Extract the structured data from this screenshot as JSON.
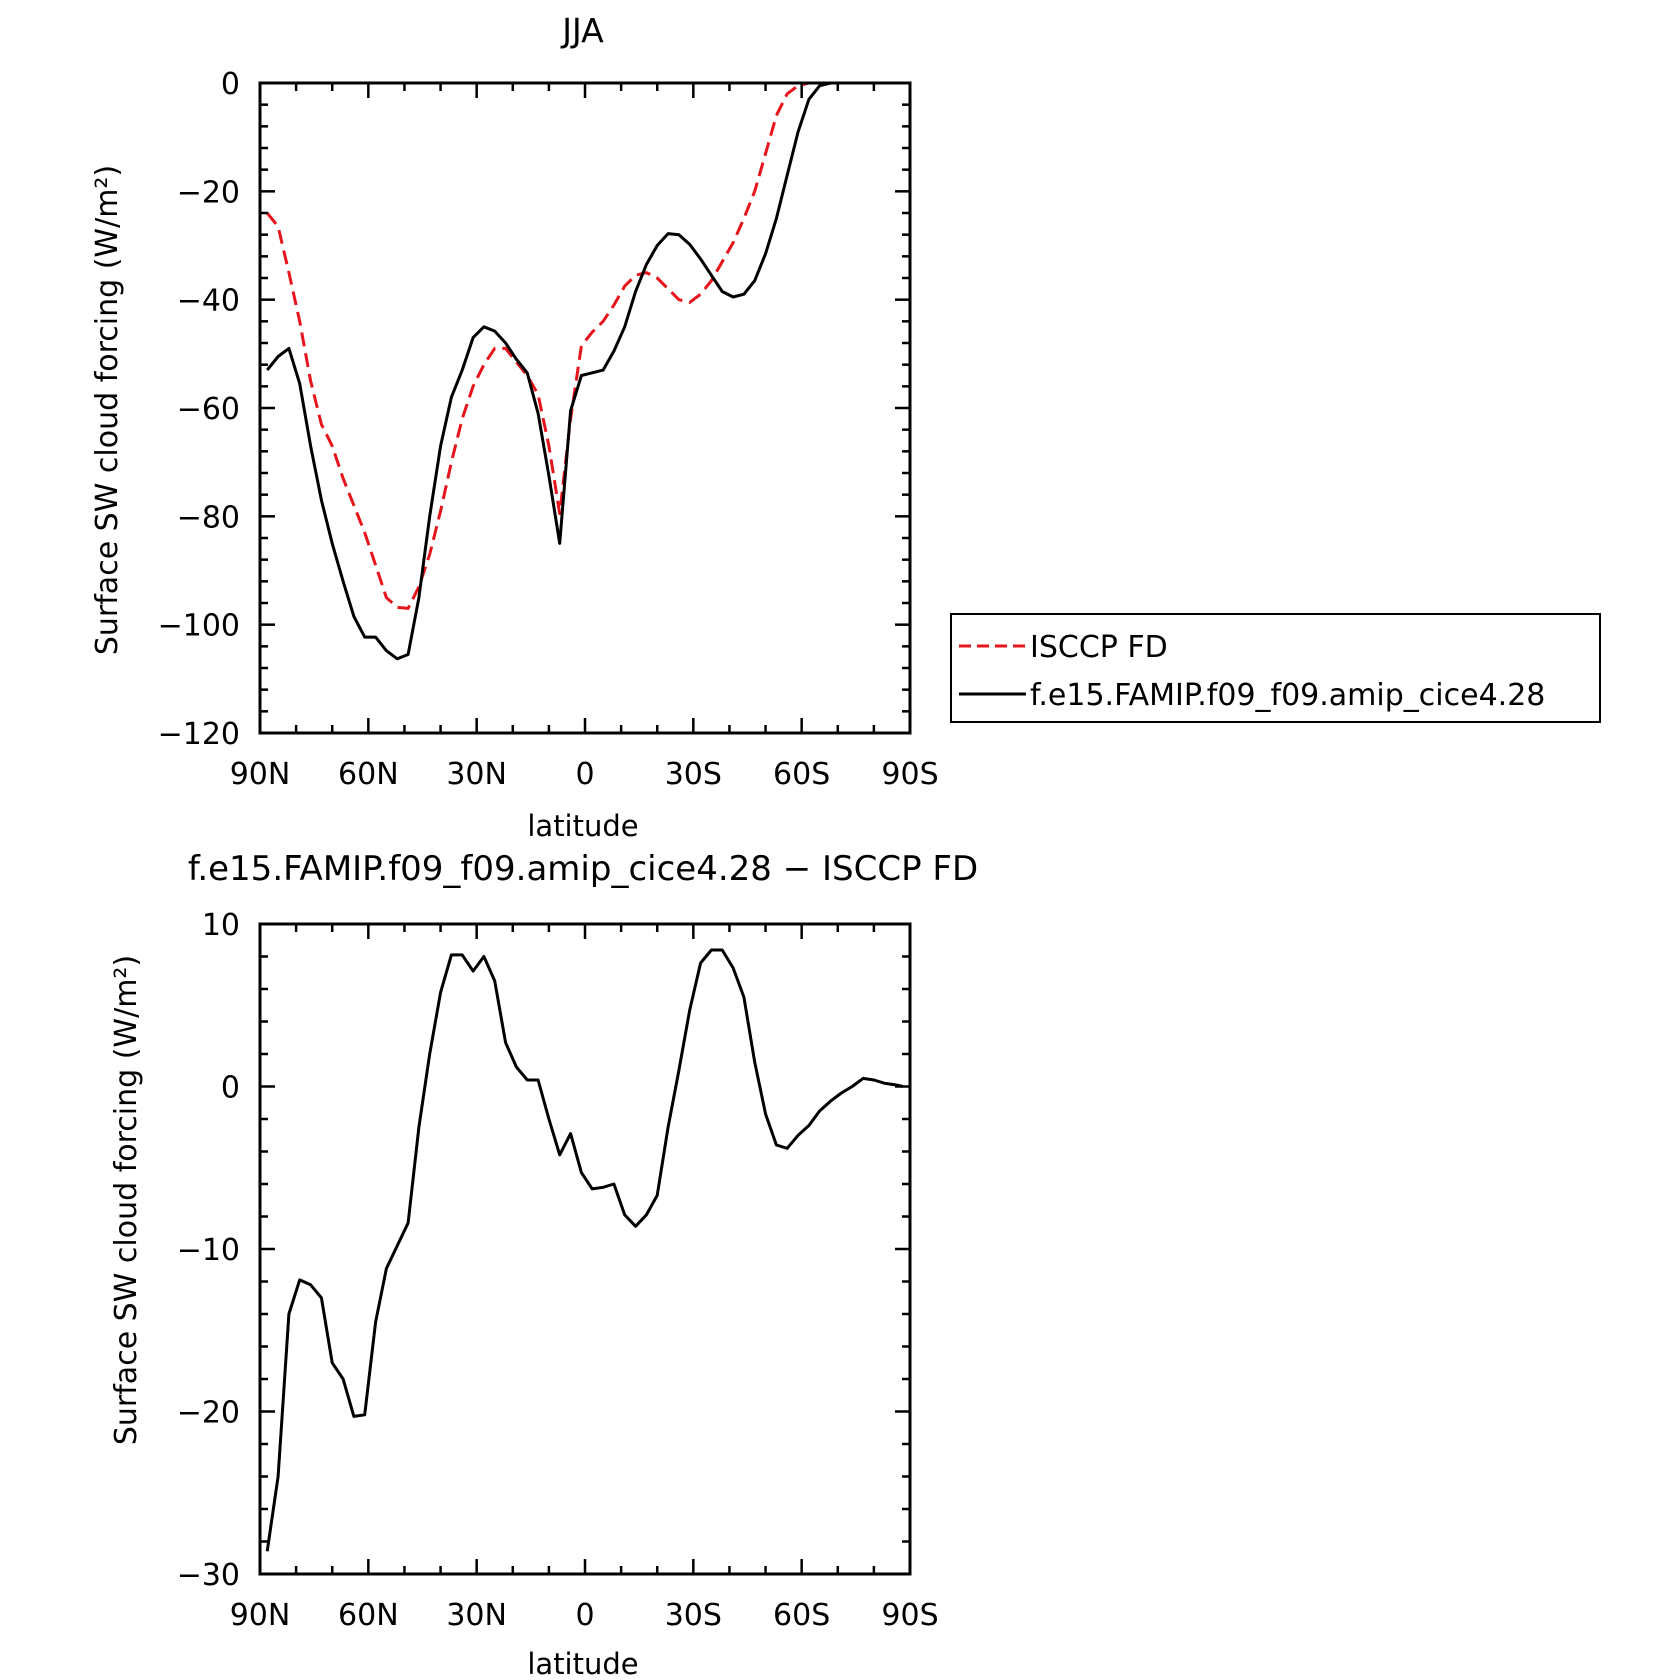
{
  "colors": {
    "model": "#000000",
    "obs": "#e8141c",
    "axis": "#000000"
  },
  "chart_data": [
    {
      "type": "line",
      "title": "JJA",
      "xlabel": "latitude",
      "ylabel": "Surface SW cloud forcing (W/m²)",
      "xlim": [
        90,
        -90
      ],
      "ylim": [
        -120,
        0
      ],
      "x_ticks": [
        90,
        60,
        30,
        0,
        -30,
        -60,
        -90
      ],
      "x_tick_labels": [
        "90N",
        "60N",
        "30N",
        "0",
        "30S",
        "60S",
        "90S"
      ],
      "y_ticks": [
        0,
        -20,
        -40,
        -60,
        -80,
        -100,
        -120
      ],
      "y_tick_labels": [
        "0",
        "−20",
        "−40",
        "−60",
        "−80",
        "−100",
        "−120"
      ],
      "legend": {
        "placement": "right",
        "entries": [
          "ISCCP FD",
          "f.e15.FAMIP.f09_f09.amip_cice4.28"
        ]
      },
      "series": [
        {
          "name": "ISCCP FD",
          "style": "dashed",
          "color": "#e8141c",
          "x": [
            88,
            85,
            82,
            79,
            76,
            73,
            70,
            67,
            64,
            61,
            58,
            55,
            52,
            49,
            46,
            43,
            40,
            37,
            34,
            31,
            28,
            25,
            22,
            19,
            16,
            13,
            10,
            7,
            4,
            1,
            -2,
            -5,
            -8,
            -11,
            -14,
            -17,
            -20,
            -23,
            -26,
            -29,
            -32,
            -35,
            -38,
            -41,
            -44,
            -47,
            -50,
            -53,
            -56,
            -59,
            -62,
            -65,
            -68,
            -71,
            -74,
            -77,
            -80,
            -83,
            -86,
            -88
          ],
          "y": [
            -24,
            -26.5,
            -35,
            -44,
            -55,
            -63,
            -67,
            -73,
            -78,
            -83,
            -89,
            -95,
            -96.8,
            -97,
            -93,
            -87,
            -79,
            -70,
            -62,
            -56,
            -52,
            -49,
            -49,
            -51.5,
            -54,
            -57.5,
            -67,
            -79.5,
            -62,
            -48.5,
            -46,
            -44,
            -41,
            -37.5,
            -35.5,
            -35,
            -36,
            -38,
            -40,
            -40.5,
            -39,
            -36.5,
            -33,
            -29.5,
            -25,
            -20,
            -13,
            -6,
            -2,
            -0.5,
            0,
            0,
            0,
            0,
            0,
            0,
            0,
            0,
            0,
            0
          ]
        },
        {
          "name": "f.e15.FAMIP.f09_f09.amip_cice4.28",
          "style": "solid",
          "color": "#000000",
          "x": [
            88,
            85,
            82,
            79,
            76,
            73,
            70,
            67,
            64,
            61,
            58,
            55,
            52,
            49,
            46,
            43,
            40,
            37,
            34,
            31,
            28,
            25,
            22,
            19,
            16,
            13,
            10,
            7,
            4,
            1,
            -2,
            -5,
            -8,
            -11,
            -14,
            -17,
            -20,
            -23,
            -26,
            -29,
            -32,
            -35,
            -38,
            -41,
            -44,
            -47,
            -50,
            -53,
            -56,
            -59,
            -62,
            -65,
            -68,
            -71,
            -74,
            -77,
            -80,
            -83,
            -86,
            -88
          ],
          "y": [
            -53,
            -50.5,
            -49,
            -55.5,
            -67,
            -77,
            -85,
            -92,
            -98.5,
            -102.3,
            -102.3,
            -104.8,
            -106.3,
            -105.5,
            -95,
            -80,
            -67,
            -58,
            -53,
            -47,
            -45,
            -45.8,
            -48,
            -51,
            -53.5,
            -61,
            -72.5,
            -85,
            -60.5,
            -54,
            -53.5,
            -53,
            -49.5,
            -45,
            -38.5,
            -33.5,
            -30,
            -27.8,
            -28,
            -29.8,
            -32.5,
            -35.5,
            -38.5,
            -39.5,
            -39,
            -36.5,
            -31.5,
            -25,
            -17,
            -9,
            -3,
            -0.5,
            0,
            0,
            0,
            0,
            0,
            0,
            0,
            0
          ]
        }
      ]
    },
    {
      "type": "line",
      "title": "f.e15.FAMIP.f09_f09.amip_cice4.28 − ISCCP FD",
      "xlabel": "latitude",
      "ylabel": "Surface SW cloud forcing (W/m²)",
      "xlim": [
        90,
        -90
      ],
      "ylim": [
        -30,
        10
      ],
      "x_ticks": [
        90,
        60,
        30,
        0,
        -30,
        -60,
        -90
      ],
      "x_tick_labels": [
        "90N",
        "60N",
        "30N",
        "0",
        "30S",
        "60S",
        "90S"
      ],
      "y_ticks": [
        10,
        0,
        -10,
        -20,
        -30
      ],
      "y_tick_labels": [
        "10",
        "0",
        "−10",
        "−20",
        "−30"
      ],
      "series": [
        {
          "style": "solid",
          "color": "#000000",
          "x": [
            88,
            85,
            82,
            79,
            76,
            73,
            70,
            67,
            64,
            61,
            58,
            55,
            52,
            49,
            46,
            43,
            40,
            37,
            34,
            31,
            28,
            25,
            22,
            19,
            16,
            13,
            10,
            7,
            4,
            1,
            -2,
            -5,
            -8,
            -11,
            -14,
            -17,
            -20,
            -23,
            -26,
            -29,
            -32,
            -35,
            -38,
            -41,
            -44,
            -47,
            -50,
            -53,
            -56,
            -59,
            -62,
            -65,
            -68,
            -71,
            -74,
            -77,
            -80,
            -83,
            -86,
            -88
          ],
          "y": [
            -28.6,
            -24,
            -14,
            -11.9,
            -12.2,
            -13,
            -17,
            -18,
            -20.3,
            -20.2,
            -14.5,
            -11.2,
            -9.8,
            -8.4,
            -2.5,
            2,
            5.8,
            8.1,
            8.1,
            7.1,
            8,
            6.5,
            2.7,
            1.2,
            0.4,
            0.4,
            -2,
            -4.2,
            -2.9,
            -5.3,
            -6.3,
            -6.2,
            -6,
            -7.9,
            -8.6,
            -7.9,
            -6.7,
            -2.5,
            1,
            4.7,
            7.6,
            8.4,
            8.4,
            7.3,
            5.5,
            1.5,
            -1.7,
            -3.6,
            -3.8,
            -3,
            -2.4,
            -1.5,
            -0.9,
            -0.4,
            0,
            0.5,
            0.4,
            0.2,
            0.1,
            0
          ]
        }
      ]
    }
  ]
}
